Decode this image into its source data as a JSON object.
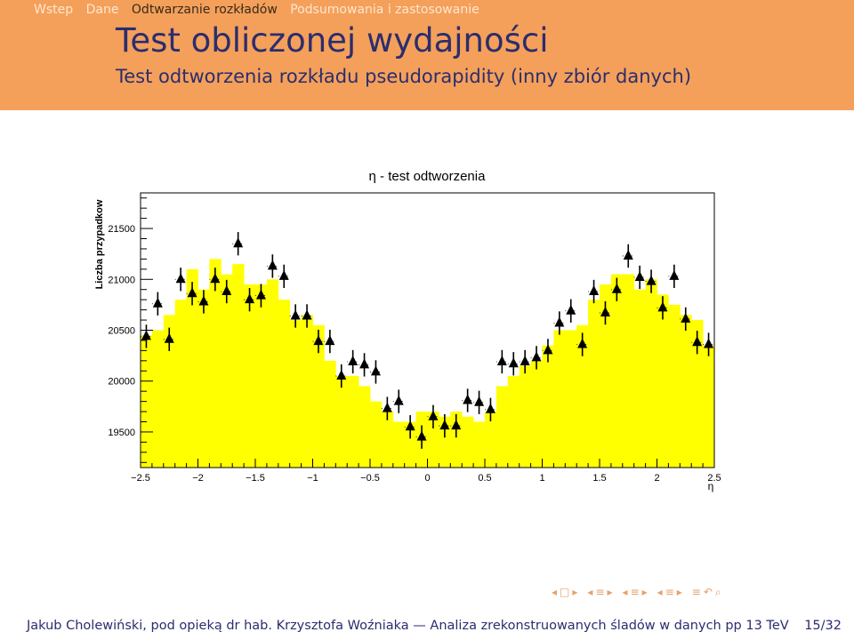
{
  "header": {
    "nav": [
      "Wstep",
      "Dane",
      "Odtwarzanie rozkładów",
      "Podsumowania i zastosowanie"
    ],
    "active_nav": "Odtwarzanie rozkładów",
    "title": "Test obliczonej wydajności",
    "subtitle": "Test odtworzenia rozkładu pseudorapidity (inny zbiór danych)"
  },
  "footer": {
    "left": "Jakub Cholewiński, pod opieką dr hab. Krzysztofa Woźniaka — Analiza zrekonstruowanych śladów w danych pp 13 TeV",
    "page": "15/32"
  },
  "beamer_nav_icons": [
    "arrow-left-icon",
    "frame-icon",
    "arrow-right-icon",
    "arrow-left-icon",
    "subsection-icon",
    "arrow-right-icon",
    "arrow-left-icon",
    "section-icon",
    "arrow-right-icon",
    "arrow-left-icon",
    "presentation-icon",
    "arrow-right-icon",
    "align-icon",
    "undo-icon",
    "search-icon"
  ],
  "colors": {
    "histogram_fill": "#ffff00",
    "markers": "#000000",
    "header": "#f4a05a",
    "title": "#2b2d6e"
  },
  "chart_data": {
    "type": "bar",
    "title": "η - test odtworzenia",
    "xlabel": "η",
    "ylabel": "Liczba przypadkow",
    "xlim": [
      -2.5,
      2.5
    ],
    "ylim": [
      19150,
      21850
    ],
    "xticks": [
      -2.5,
      -2,
      -1.5,
      -1,
      -0.5,
      0,
      0.5,
      1,
      1.5,
      2,
      2.5
    ],
    "xtick_labels": [
      "−2.5",
      "−2",
      "−1.5",
      "−1",
      "−0.5",
      "0",
      "0.5",
      "1",
      "1.5",
      "2",
      "2.5"
    ],
    "yticks": [
      19500,
      20000,
      20500,
      21000,
      21500
    ],
    "ytick_labels": [
      "19500",
      "20000",
      "20500",
      "21000",
      "21500"
    ],
    "bin_width": 0.1,
    "bin_centers": [
      -2.45,
      -2.35,
      -2.25,
      -2.15,
      -2.05,
      -1.95,
      -1.85,
      -1.75,
      -1.65,
      -1.55,
      -1.45,
      -1.35,
      -1.25,
      -1.15,
      -1.05,
      -0.95,
      -0.85,
      -0.75,
      -0.65,
      -0.55,
      -0.45,
      -0.35,
      -0.25,
      -0.15,
      -0.05,
      0.05,
      0.15,
      0.25,
      0.35,
      0.45,
      0.55,
      0.65,
      0.75,
      0.85,
      0.95,
      1.05,
      1.15,
      1.25,
      1.35,
      1.45,
      1.55,
      1.65,
      1.75,
      1.85,
      1.95,
      2.05,
      2.15,
      2.25,
      2.35,
      2.45
    ],
    "series": [
      {
        "kind": "histogram",
        "values": [
          20450,
          20500,
          20650,
          20800,
          21100,
          20900,
          21200,
          21050,
          21150,
          20950,
          20950,
          21000,
          20800,
          20600,
          20650,
          20550,
          20200,
          20050,
          20050,
          19950,
          19800,
          19700,
          19600,
          19600,
          19700,
          19700,
          19650,
          19700,
          19650,
          19600,
          19700,
          19950,
          20050,
          20150,
          20200,
          20350,
          20500,
          20500,
          20550,
          20800,
          20950,
          21050,
          21050,
          20900,
          21000,
          20850,
          20750,
          20650,
          20600,
          20350
        ]
      },
      {
        "kind": "points",
        "values": [
          20440,
          20760,
          20410,
          21000,
          20860,
          20780,
          21000,
          20880,
          21350,
          20800,
          20840,
          21130,
          21030,
          20640,
          20640,
          20390,
          20390,
          20050,
          20190,
          20160,
          20090,
          19730,
          19800,
          19550,
          19450,
          19650,
          19560,
          19560,
          19810,
          19790,
          19720,
          20190,
          20170,
          20190,
          20230,
          20300,
          20570,
          20690,
          20360,
          20880,
          20670,
          20900,
          21230,
          21020,
          20980,
          20720,
          21030,
          20610,
          20380,
          20360
        ],
        "errors": [
          115,
          115,
          115,
          115,
          115,
          115,
          115,
          115,
          115,
          115,
          115,
          115,
          115,
          115,
          115,
          115,
          115,
          115,
          115,
          115,
          115,
          115,
          115,
          115,
          115,
          115,
          115,
          115,
          115,
          115,
          115,
          115,
          115,
          115,
          115,
          115,
          115,
          115,
          115,
          115,
          115,
          115,
          115,
          115,
          115,
          115,
          115,
          115,
          115,
          115
        ]
      }
    ]
  }
}
